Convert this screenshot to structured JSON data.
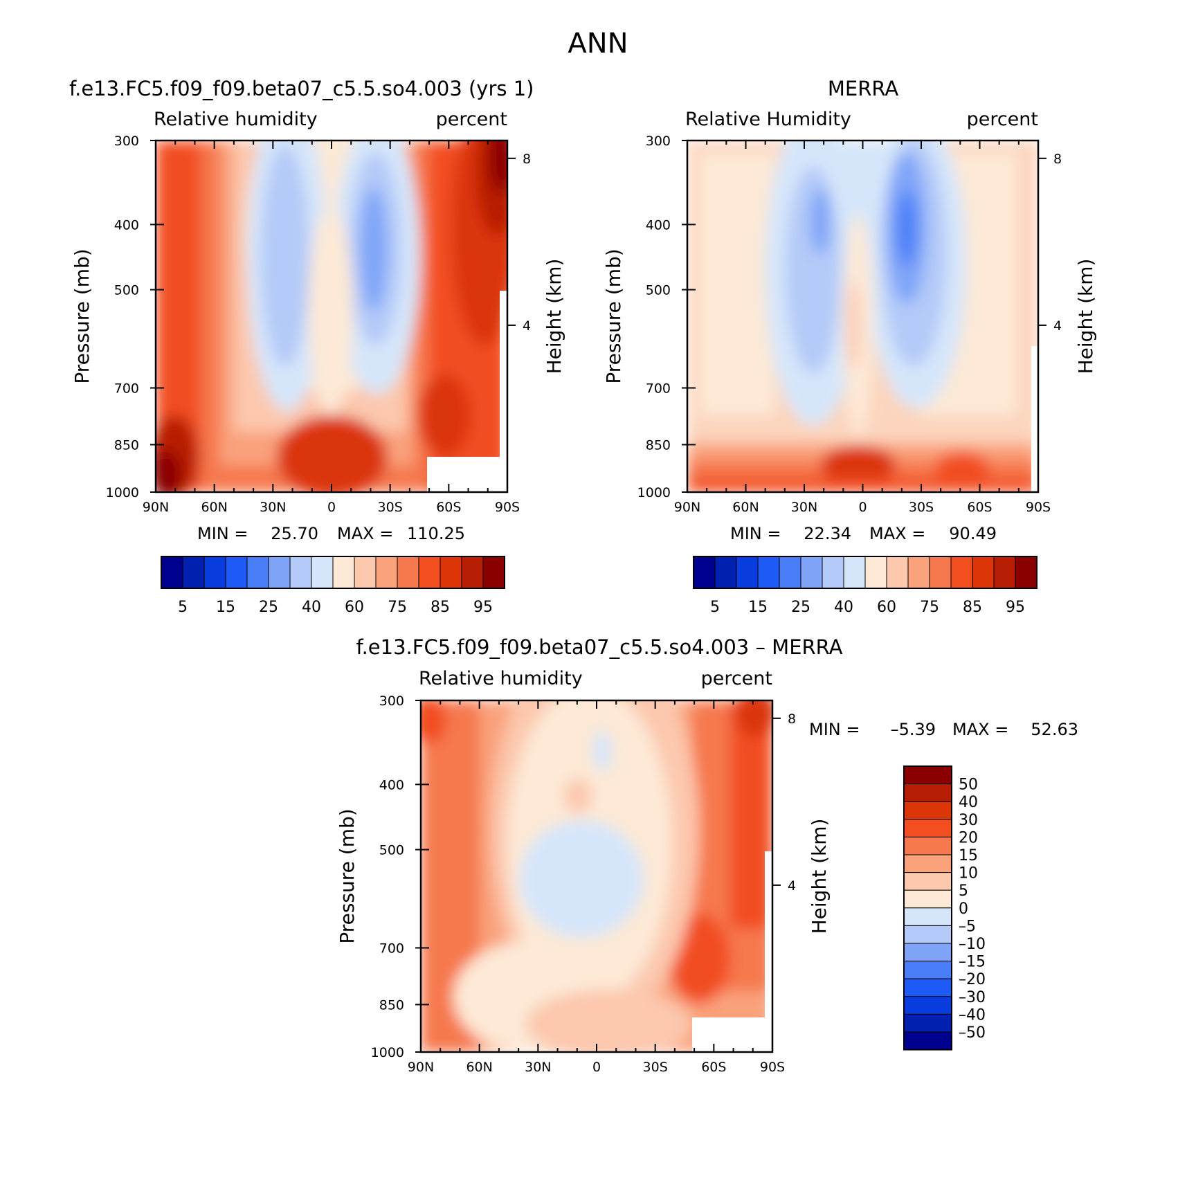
{
  "figure": {
    "title": "ANN"
  },
  "chart_data": [
    {
      "type": "heatmap",
      "title": "f.e13.FC5.f09_f09.beta07_c5.5.so4.003 (yrs 1)",
      "variable": "Relative humidity",
      "units": "percent",
      "ylabel": "Pressure (mb)",
      "ylabel_right": "Height (km)",
      "x_ticks": [
        "90N",
        "60N",
        "30N",
        "0",
        "30S",
        "60S",
        "90S"
      ],
      "y_ticks": [
        "300",
        "400",
        "500",
        "700",
        "850",
        "1000"
      ],
      "y_ticks_right": [
        "8",
        "4"
      ],
      "ylim": [
        1000,
        300
      ],
      "min_label": "MIN =",
      "min_value": "25.70",
      "max_label": "MAX =",
      "max_value": "110.25",
      "colorbar_labels": [
        "5",
        "15",
        "25",
        "40",
        "60",
        "75",
        "85",
        "95"
      ]
    },
    {
      "type": "heatmap",
      "title": "MERRA",
      "variable": "Relative Humidity",
      "units": "percent",
      "ylabel": "Pressure (mb)",
      "ylabel_right": "Height (km)",
      "x_ticks": [
        "90N",
        "60N",
        "30N",
        "0",
        "30S",
        "60S",
        "90S"
      ],
      "y_ticks": [
        "300",
        "400",
        "500",
        "700",
        "850",
        "1000"
      ],
      "y_ticks_right": [
        "8",
        "4"
      ],
      "ylim": [
        1000,
        300
      ],
      "min_label": "MIN =",
      "min_value": "22.34",
      "max_label": "MAX =",
      "max_value": "90.49",
      "colorbar_labels": [
        "5",
        "15",
        "25",
        "40",
        "60",
        "75",
        "85",
        "95"
      ]
    },
    {
      "type": "heatmap",
      "title": "f.e13.FC5.f09_f09.beta07_c5.5.so4.003 – MERRA",
      "variable": "Relative humidity",
      "units": "percent",
      "ylabel": "Pressure (mb)",
      "ylabel_right": "Height (km)",
      "x_ticks": [
        "90N",
        "60N",
        "30N",
        "0",
        "30S",
        "60S",
        "90S"
      ],
      "y_ticks": [
        "300",
        "400",
        "500",
        "700",
        "850",
        "1000"
      ],
      "y_ticks_right": [
        "8",
        "4"
      ],
      "ylim": [
        1000,
        300
      ],
      "min_label": "MIN =",
      "min_value": "–5.39",
      "max_label": "MAX =",
      "max_value": "52.63",
      "colorbar_labels": [
        "50",
        "40",
        "30",
        "20",
        "15",
        "10",
        "5",
        "0",
        "–5",
        "–10",
        "–15",
        "–20",
        "–30",
        "–40",
        "–50"
      ]
    }
  ],
  "palette": [
    "#00008f",
    "#0020b0",
    "#0a3de0",
    "#1e5af5",
    "#4a7ef8",
    "#80a5f8",
    "#b4caf8",
    "#d6e6fa",
    "#fde9d6",
    "#fcc8ae",
    "#f9a27c",
    "#f6784e",
    "#f24e20",
    "#db3508",
    "#b81e04",
    "#8a0000"
  ]
}
